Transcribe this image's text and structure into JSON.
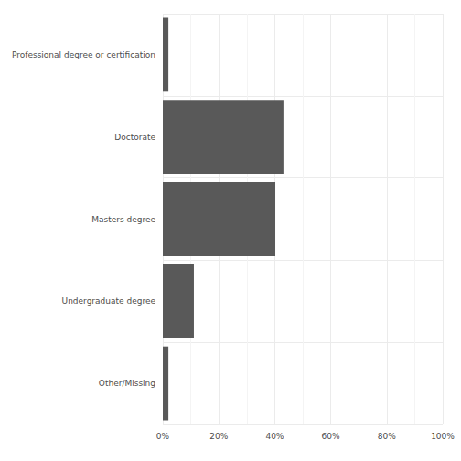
{
  "chart_data": {
    "type": "bar",
    "orientation": "horizontal",
    "categories": [
      "Professional degree or certification",
      "Doctorate",
      "Masters degree",
      "Undergraduate degree",
      "Other/Missing"
    ],
    "values": [
      2,
      43.1,
      40.2,
      11.1,
      2
    ],
    "color": "#595959",
    "xlim": [
      0,
      100
    ],
    "xticks": [
      {
        "value": 0,
        "label": "0%"
      },
      {
        "value": 20,
        "label": "20%"
      },
      {
        "value": 40,
        "label": "40%"
      },
      {
        "value": 60,
        "label": "60%"
      },
      {
        "value": 80,
        "label": "80%"
      },
      {
        "value": 100,
        "label": "100%"
      }
    ],
    "grid": true
  }
}
